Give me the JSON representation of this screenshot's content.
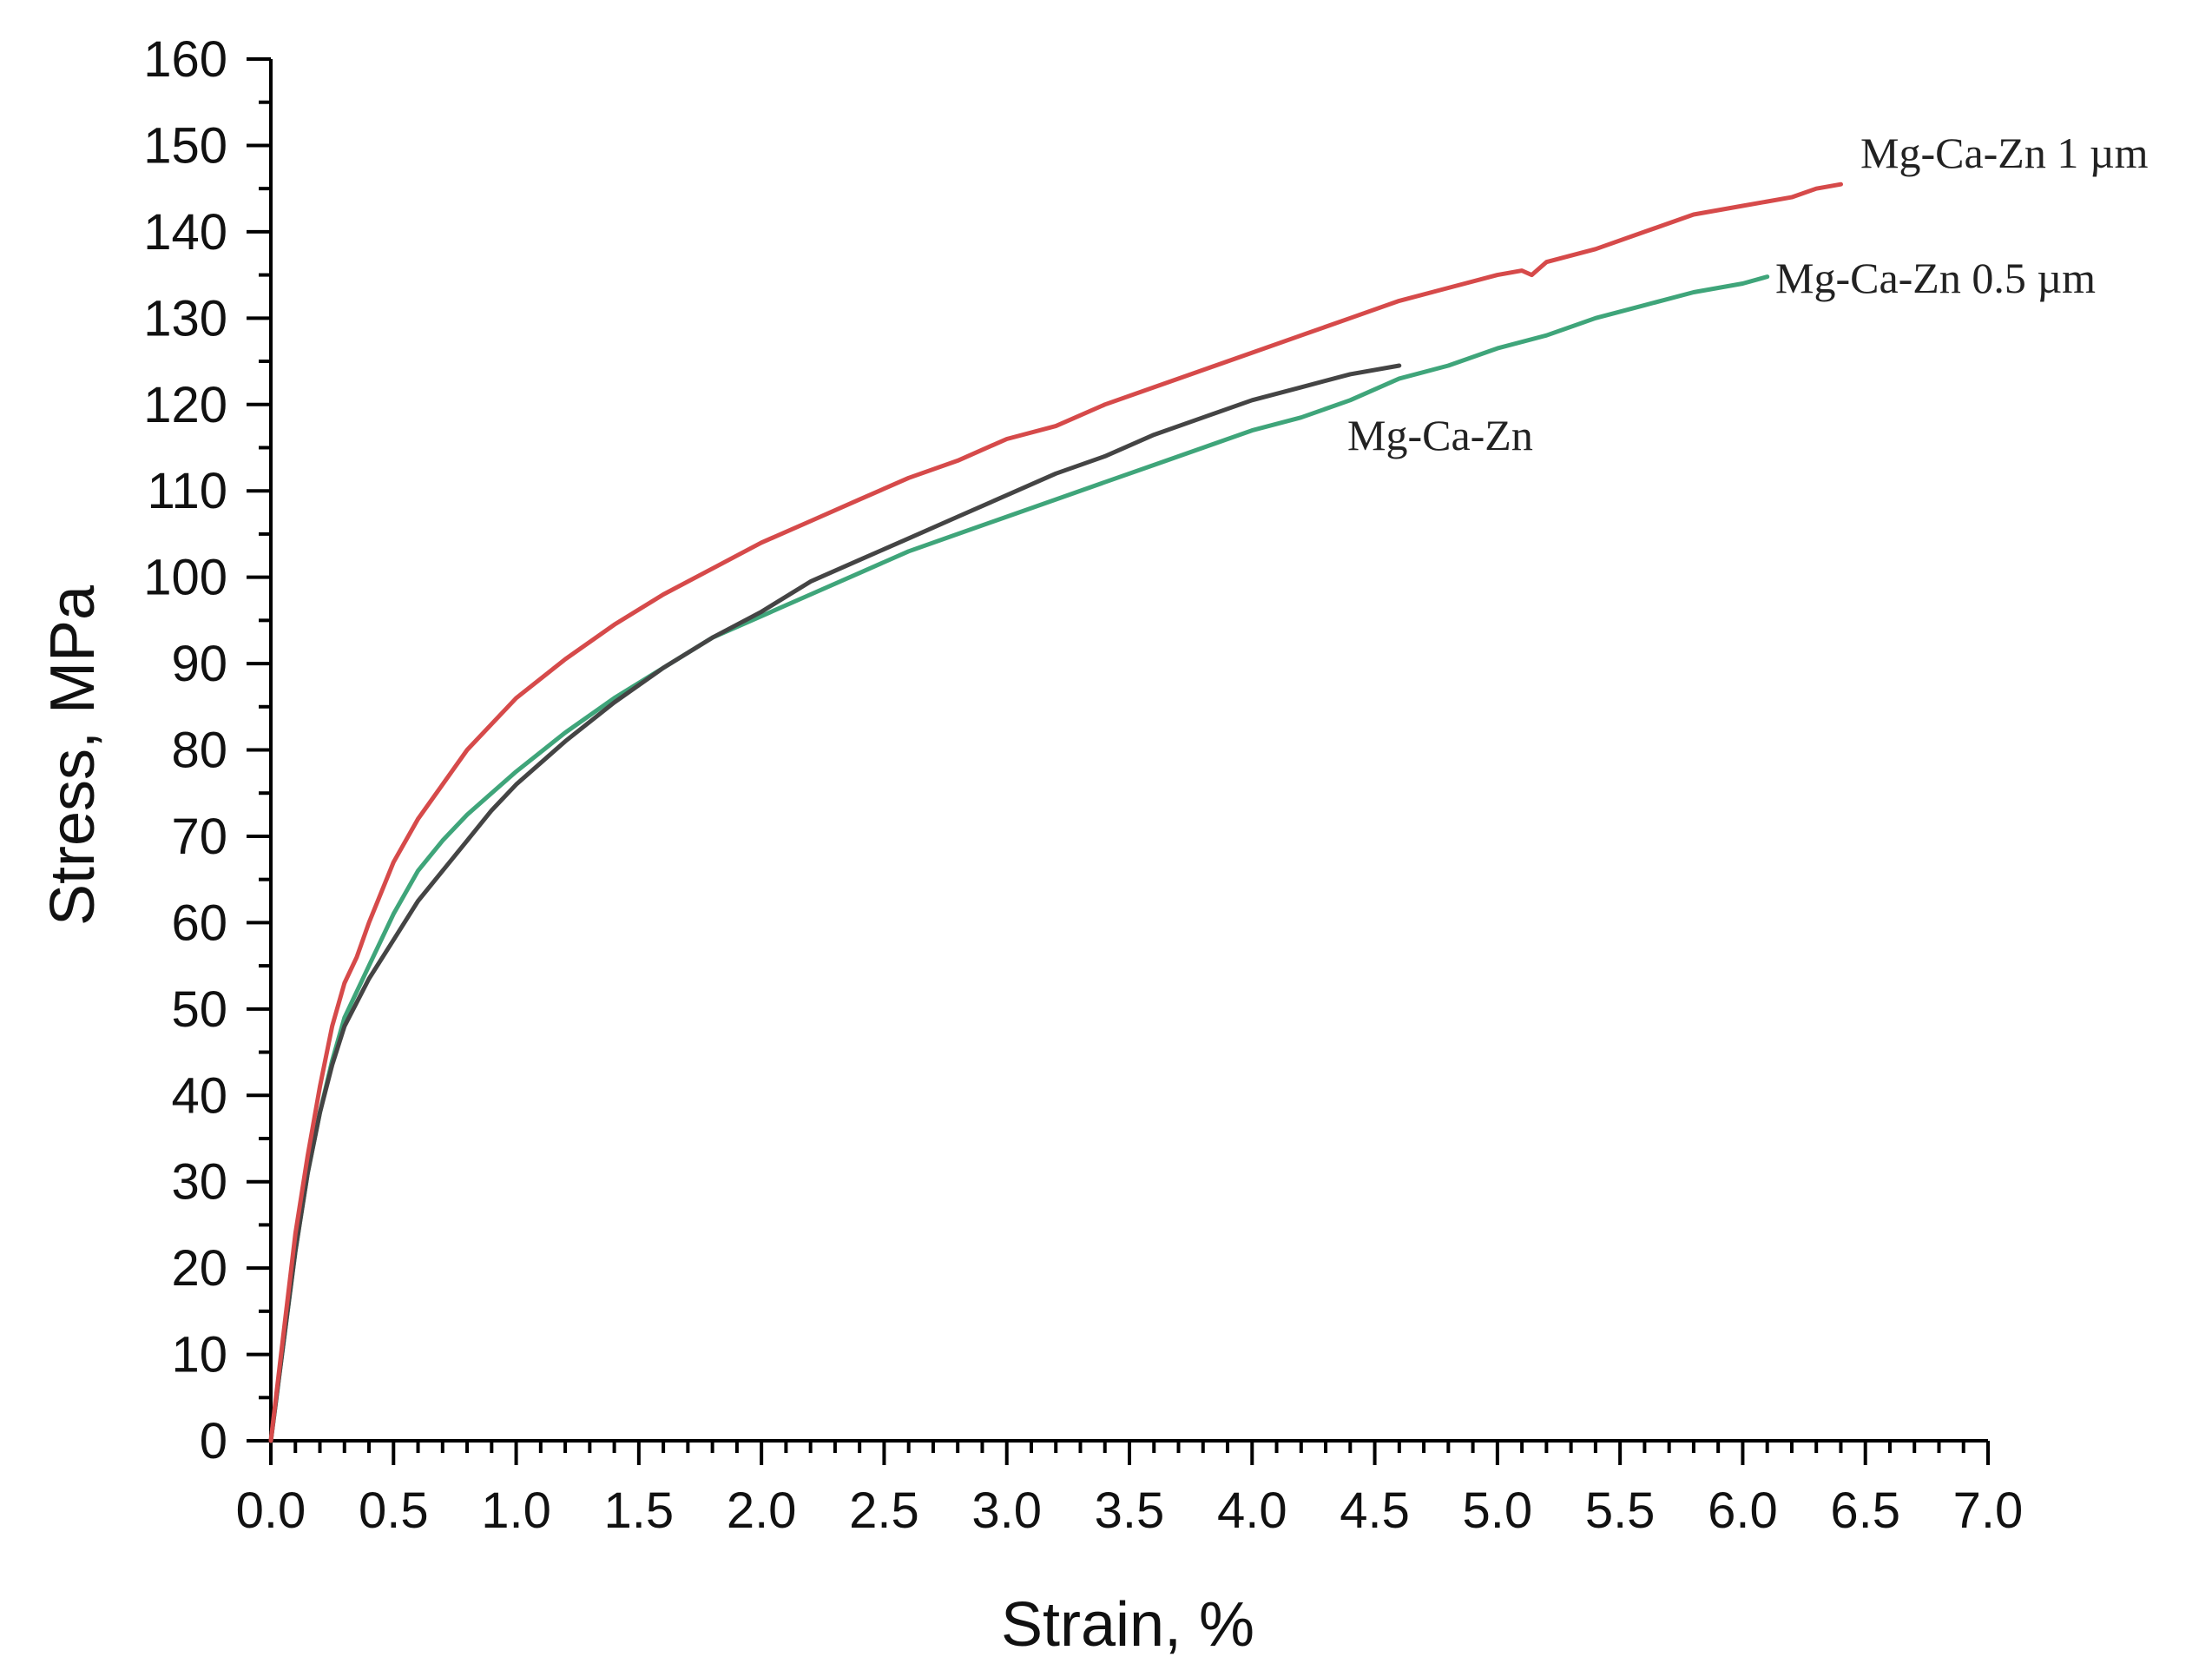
{
  "chart_data": {
    "type": "line",
    "title": "",
    "xlabel": "Strain, %",
    "ylabel": "Stress, MPa",
    "xlim": [
      0,
      7
    ],
    "ylim": [
      0,
      160
    ],
    "grid": false,
    "legend": "none",
    "x_ticks": [
      0,
      0.5,
      1,
      1.5,
      2,
      2.5,
      3,
      3.5,
      4,
      4.5,
      5,
      5.5,
      6,
      6.5,
      7
    ],
    "x_tick_labels": [
      "0.0",
      "0.5",
      "1.0",
      "1.5",
      "2.0",
      "2.5",
      "3.0",
      "3.5",
      "4.0",
      "4.5",
      "5.0",
      "5.5",
      "6.0",
      "6.5",
      "7.0"
    ],
    "y_ticks": [
      0,
      10,
      20,
      30,
      40,
      50,
      60,
      70,
      80,
      90,
      100,
      110,
      120,
      130,
      140,
      150,
      160
    ],
    "y_tick_labels": [
      "0",
      "10",
      "20",
      "30",
      "40",
      "50",
      "60",
      "70",
      "80",
      "90",
      "100",
      "110",
      "120",
      "130",
      "140",
      "150",
      "160"
    ],
    "series": [
      {
        "name": "Mg-Ca-Zn 1 µm",
        "label": "Mg-Ca-Zn 1 µm",
        "color": "#d64a4a",
        "x": [
          0,
          0.05,
          0.1,
          0.15,
          0.2,
          0.25,
          0.3,
          0.35,
          0.4,
          0.5,
          0.6,
          0.7,
          0.8,
          0.9,
          1.0,
          1.2,
          1.4,
          1.6,
          1.8,
          2.0,
          2.2,
          2.4,
          2.6,
          2.8,
          3.0,
          3.2,
          3.4,
          3.6,
          3.8,
          4.0,
          4.2,
          4.4,
          4.6,
          4.8,
          5.0,
          5.1,
          5.14,
          5.2,
          5.4,
          5.6,
          5.8,
          6.0,
          6.2,
          6.3,
          6.4
        ],
        "values": [
          0,
          12,
          24,
          33,
          41,
          48,
          53,
          56,
          60,
          67,
          72,
          76,
          80,
          83,
          86,
          90.5,
          94.5,
          98,
          101,
          104,
          106.5,
          109,
          111.5,
          113.5,
          116,
          117.5,
          120,
          122,
          124,
          126,
          128,
          130,
          132,
          133.5,
          135,
          135.5,
          135,
          136.5,
          138,
          140,
          142,
          143,
          144,
          145,
          145.5
        ]
      },
      {
        "name": "Mg-Ca-Zn 0.5 µm",
        "label": "Mg-Ca-Zn 0.5 µm",
        "color": "#3fa57a",
        "x": [
          0,
          0.05,
          0.1,
          0.15,
          0.2,
          0.25,
          0.3,
          0.4,
          0.5,
          0.6,
          0.7,
          0.8,
          0.9,
          1.0,
          1.2,
          1.4,
          1.6,
          1.8,
          2.0,
          2.2,
          2.4,
          2.6,
          2.8,
          3.0,
          3.2,
          3.4,
          3.6,
          3.8,
          4.0,
          4.2,
          4.4,
          4.6,
          4.8,
          5.0,
          5.2,
          5.4,
          5.6,
          5.8,
          6.0,
          6.1
        ],
        "values": [
          0,
          11,
          22,
          31,
          38,
          44,
          49,
          55,
          61,
          66,
          69.5,
          72.5,
          75,
          77.5,
          82,
          86,
          89.5,
          93,
          95.5,
          98,
          100.5,
          103,
          105,
          107,
          109,
          111,
          113,
          115,
          117,
          118.5,
          120.5,
          123,
          124.5,
          126.5,
          128,
          130,
          131.5,
          133,
          134,
          134.8
        ]
      },
      {
        "name": "Mg-Ca-Zn",
        "label": "Mg-Ca-Zn",
        "color": "#444444",
        "x": [
          0,
          0.05,
          0.1,
          0.15,
          0.2,
          0.25,
          0.3,
          0.4,
          0.5,
          0.6,
          0.7,
          0.8,
          0.9,
          1.0,
          1.2,
          1.4,
          1.6,
          1.8,
          2.0,
          2.2,
          2.4,
          2.6,
          2.8,
          3.0,
          3.2,
          3.4,
          3.6,
          3.8,
          4.0,
          4.2,
          4.4,
          4.6
        ],
        "values": [
          0,
          11,
          22,
          31,
          38,
          43.5,
          48,
          53.5,
          58,
          62.5,
          66,
          69.5,
          73,
          76,
          81,
          85.5,
          89.5,
          93,
          96,
          99.5,
          102,
          104.5,
          107,
          109.5,
          112,
          114,
          116.5,
          118.5,
          120.5,
          122,
          123.5,
          124.5
        ]
      }
    ]
  }
}
